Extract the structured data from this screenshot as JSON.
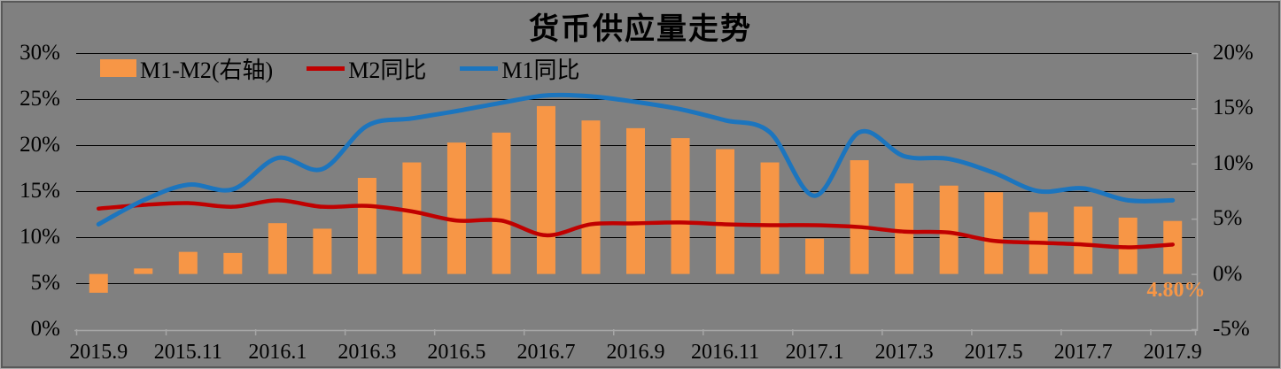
{
  "chart_data": {
    "type": "combo",
    "title": "货币供应量走势",
    "categories": [
      "2015.9",
      "2015.10",
      "2015.11",
      "2015.12",
      "2016.1",
      "2016.2",
      "2016.3",
      "2016.4",
      "2016.5",
      "2016.6",
      "2016.7",
      "2016.8",
      "2016.9",
      "2016.10",
      "2016.11",
      "2016.12",
      "2017.1",
      "2017.2",
      "2017.3",
      "2017.4",
      "2017.5",
      "2017.6",
      "2017.7",
      "2017.8",
      "2017.9"
    ],
    "x_tick_labels": [
      "2015.9",
      "2015.11",
      "2016.1",
      "2016.3",
      "2016.5",
      "2016.7",
      "2016.9",
      "2016.11",
      "2017.1",
      "2017.3",
      "2017.5",
      "2017.7",
      "2017.9"
    ],
    "series": [
      {
        "name": "M1-M2(右轴)",
        "type": "bar",
        "axis": "right",
        "color": "#F79646",
        "values": [
          -1.7,
          0.5,
          2.0,
          1.9,
          4.6,
          4.1,
          8.7,
          10.1,
          11.9,
          12.8,
          15.2,
          13.9,
          13.2,
          12.3,
          11.3,
          10.1,
          3.2,
          10.3,
          8.2,
          8.0,
          7.4,
          5.6,
          6.1,
          5.1,
          4.8
        ]
      },
      {
        "name": "M2同比",
        "type": "line",
        "axis": "left",
        "color": "#C00000",
        "values": [
          13.1,
          13.5,
          13.7,
          13.3,
          14.0,
          13.3,
          13.4,
          12.8,
          11.8,
          11.8,
          10.2,
          11.4,
          11.5,
          11.6,
          11.4,
          11.3,
          11.3,
          11.1,
          10.6,
          10.5,
          9.6,
          9.4,
          9.2,
          8.9,
          9.2
        ]
      },
      {
        "name": "M1同比",
        "type": "line",
        "axis": "left",
        "color": "#1C75BE",
        "values": [
          11.4,
          14.0,
          15.7,
          15.2,
          18.6,
          17.4,
          22.1,
          22.9,
          23.7,
          24.6,
          25.4,
          25.3,
          24.7,
          23.9,
          22.7,
          21.4,
          14.5,
          21.4,
          18.8,
          18.5,
          17.0,
          15.0,
          15.3,
          14.0,
          14.0
        ]
      }
    ],
    "left_axis": {
      "min": 0,
      "max": 30,
      "tick_step": 5,
      "tick_labels": [
        "30%",
        "25%",
        "20%",
        "15%",
        "10%",
        "5%",
        "0%"
      ]
    },
    "right_axis": {
      "min": -5,
      "max": 20,
      "tick_step": 5,
      "tick_labels": [
        "20%",
        "15%",
        "10%",
        "5%",
        "0%",
        "-5%"
      ]
    },
    "grid": true,
    "legend_position": "top-left-inside",
    "annotation": {
      "text": "4.80%",
      "target": "2017.9",
      "color": "#F79646"
    }
  },
  "colors": {
    "background": "#808080",
    "gridline": "#000000",
    "axis_line": "#A6A6A6",
    "text": "#000000",
    "border_dark": "#595959",
    "border_light": "#ABABAB"
  }
}
